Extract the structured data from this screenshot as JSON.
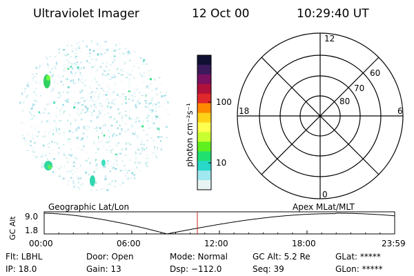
{
  "header": {
    "instrument": "Ultraviolet Imager",
    "date": "12 Oct 00",
    "time": "10:29:40 UT"
  },
  "colorbar": {
    "unit_label": "photon cm⁻²s⁻¹",
    "tick_100": "100",
    "tick_10": "10",
    "colors": [
      "#111133",
      "#3a1a5a",
      "#7a1060",
      "#b0103a",
      "#e0282a",
      "#ff8a00",
      "#ffd21a",
      "#ffff50",
      "#c8ff30",
      "#60f020",
      "#20e070",
      "#28d8c8",
      "#a0e8f0",
      "#e8f4f4"
    ]
  },
  "polar_plot": {
    "mlt_top": "12",
    "mlt_left": "18",
    "mlt_right": "6",
    "mlt_bottom": "0",
    "lat_60": "60",
    "lat_70": "70",
    "lat_80": "80"
  },
  "orbit_plot": {
    "left_title": "Geographic Lat/Lon",
    "right_title": "Apex MLat/MLT",
    "axis_label": "GC Alt",
    "y_top": "9.0",
    "y_bottom": "1.8",
    "x_ticks": [
      "00:00",
      "06:00",
      "12:00",
      "18:00",
      "23:59"
    ],
    "current_time_hours": 10.49,
    "marker_color": "#cc2222"
  },
  "info": {
    "flt": "Flt: LBHL",
    "door": "Door: Open",
    "mode": "Mode: Normal",
    "gc_alt": "GC Alt: 5.2 Re",
    "glat": "GLat: *****",
    "ip": "IP: 18.0",
    "gain": "Gain: 13",
    "dsp": "Dsp: −112.0",
    "seq": "Seq: 39",
    "glon": "GLon: *****"
  }
}
